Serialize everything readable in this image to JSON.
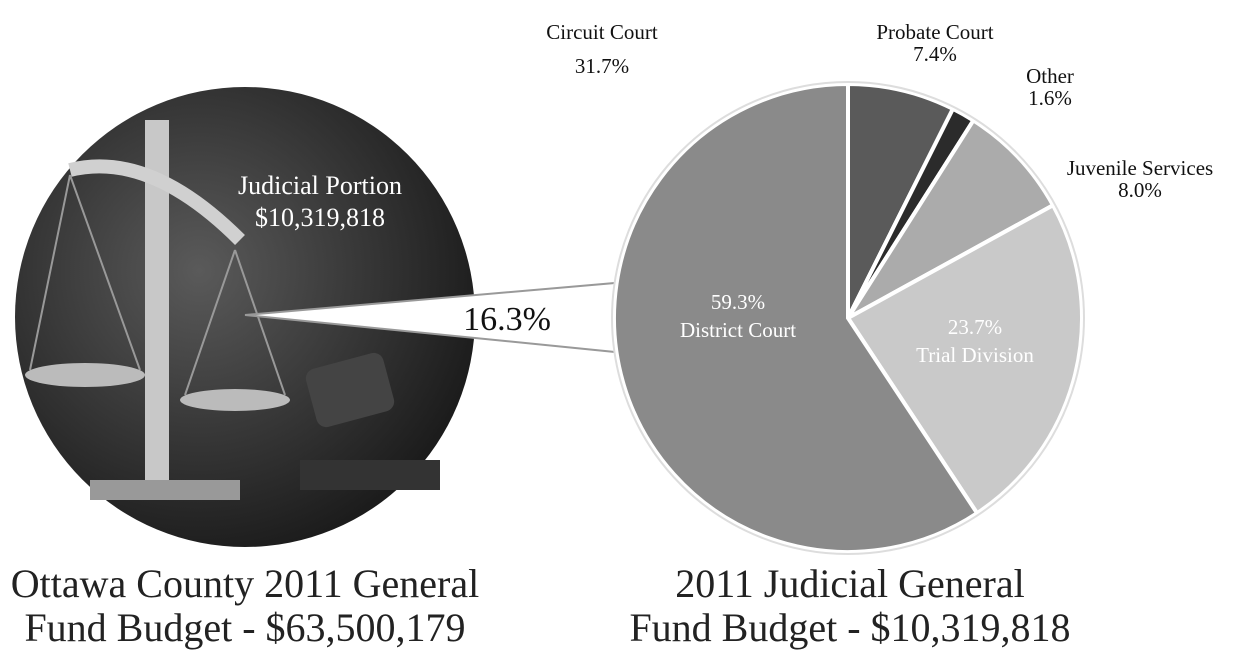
{
  "chart_data": [
    {
      "type": "callout",
      "title": [
        "Ottawa County 2011 General",
        "Fund Budget - $63,500,179"
      ],
      "annotations": [
        "Judicial Portion",
        "$10,319,818"
      ],
      "categories": [
        "Judicial Portion"
      ],
      "values": [
        16.3
      ],
      "value_labels": [
        "16.3%"
      ]
    },
    {
      "type": "pie",
      "title": [
        "2011 Judicial General",
        "Fund Budget - $10,319,818"
      ],
      "annotations": [
        {
          "text": "Circuit Court",
          "label": "31.7%"
        }
      ],
      "categories": [
        "Probate Court",
        "Other",
        "Juvenile Services",
        "Trial Division",
        "District Court"
      ],
      "values": [
        7.4,
        1.6,
        8.0,
        23.7,
        59.3
      ],
      "value_labels": [
        "7.4%",
        "1.6%",
        "8.0%",
        "23.7%",
        "59.3%"
      ],
      "colors": [
        "#5a5a5a",
        "#2b2b2b",
        "#ababab",
        "#c9c9c9",
        "#8a8a8a"
      ]
    }
  ]
}
